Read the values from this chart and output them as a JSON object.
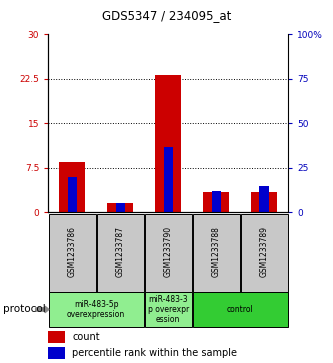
{
  "title": "GDS5347 / 234095_at",
  "samples": [
    "GSM1233786",
    "GSM1233787",
    "GSM1233790",
    "GSM1233788",
    "GSM1233789"
  ],
  "red_values": [
    8.5,
    1.5,
    23.2,
    3.5,
    3.5
  ],
  "blue_percentiles": [
    20,
    5,
    37,
    12,
    15
  ],
  "ylim_left": [
    0,
    30
  ],
  "ylim_right": [
    0,
    100
  ],
  "yticks_left": [
    0,
    7.5,
    15,
    22.5,
    30
  ],
  "yticks_right": [
    0,
    25,
    50,
    75,
    100
  ],
  "ytick_labels_left": [
    "0",
    "7.5",
    "15",
    "22.5",
    "30"
  ],
  "ytick_labels_right": [
    "0",
    "25",
    "50",
    "75",
    "100%"
  ],
  "bar_width": 0.55,
  "red_color": "#CC0000",
  "blue_color": "#0000CC",
  "left_tick_color": "#CC0000",
  "right_tick_color": "#0000BB",
  "plot_bg": "#FFFFFF",
  "group_configs": [
    {
      "start": 0,
      "end": 1,
      "label": "miR-483-5p\noverexpression",
      "color": "#90EE90"
    },
    {
      "start": 2,
      "end": 2,
      "label": "miR-483-3\np overexpr\nession",
      "color": "#90EE90"
    },
    {
      "start": 3,
      "end": 4,
      "label": "control",
      "color": "#33CC33"
    }
  ],
  "protocol_label": "protocol"
}
